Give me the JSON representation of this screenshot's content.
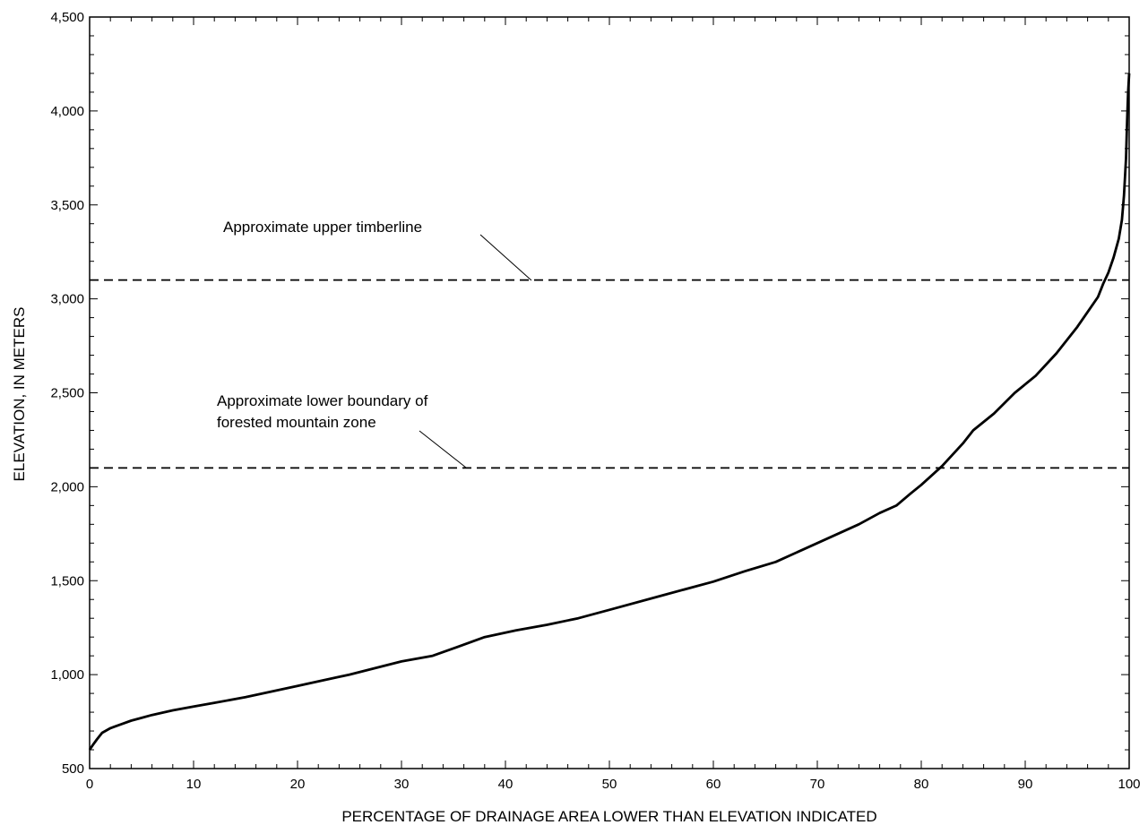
{
  "chart_data": {
    "type": "line",
    "title": "",
    "xlabel": "PERCENTAGE OF DRAINAGE AREA LOWER THAN ELEVATION INDICATED",
    "ylabel": "ELEVATION, IN METERS",
    "xlim": [
      0,
      100
    ],
    "ylim": [
      500,
      4500
    ],
    "x_ticks": [
      0,
      10,
      20,
      30,
      40,
      50,
      60,
      70,
      80,
      90,
      100
    ],
    "x_tick_labels": [
      "0",
      "10",
      "20",
      "30",
      "40",
      "50",
      "60",
      "70",
      "80",
      "90",
      "100"
    ],
    "y_ticks": [
      500,
      1000,
      1500,
      2000,
      2500,
      3000,
      3500,
      4000,
      4500
    ],
    "y_tick_labels": [
      "500",
      "1,000",
      "1,500",
      "2,000",
      "2,500",
      "3,000",
      "3,500",
      "4,000",
      "4,500"
    ],
    "grid": false,
    "series": [
      {
        "x": [
          0,
          0.3,
          0.7,
          1.2,
          2,
          3,
          4,
          5,
          6,
          8,
          10,
          12,
          15,
          20,
          25,
          30,
          33,
          35,
          38,
          41,
          44,
          47,
          50,
          55,
          60,
          63,
          66,
          70,
          74,
          76,
          77.6,
          79,
          80,
          81,
          82,
          83,
          84,
          85,
          86,
          87,
          89,
          91,
          93,
          95,
          96,
          97,
          97.5,
          98,
          98.5,
          99,
          99.3,
          99.5,
          99.7,
          99.8,
          99.9,
          100
        ],
        "y": [
          600,
          625,
          655,
          690,
          715,
          735,
          755,
          770,
          785,
          810,
          830,
          850,
          880,
          940,
          1000,
          1070,
          1100,
          1140,
          1200,
          1235,
          1265,
          1300,
          1345,
          1420,
          1495,
          1550,
          1600,
          1700,
          1800,
          1860,
          1900,
          1965,
          2010,
          2060,
          2110,
          2170,
          2230,
          2300,
          2345,
          2390,
          2500,
          2590,
          2710,
          2850,
          2930,
          3010,
          3080,
          3140,
          3220,
          3320,
          3420,
          3550,
          3750,
          3950,
          4100,
          4200
        ]
      }
    ],
    "reference_lines": [
      {
        "y": 3100,
        "style": "dashed",
        "label": "Approximate upper timberline"
      },
      {
        "y": 2100,
        "style": "dashed",
        "label_lines": [
          "Approximate lower boundary of",
          "forested mountain zone"
        ]
      }
    ]
  }
}
